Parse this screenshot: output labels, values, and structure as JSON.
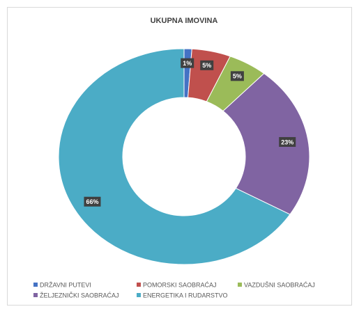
{
  "chart_data": {
    "type": "donut",
    "title": "UKUPNA IMOVINA",
    "categories": [
      "DRŽAVNI PUTEVI",
      "POMORSKI SAOBRAĆAJ",
      "VAZDUŠNI SAOBRAĆAJ",
      "ŽELJEZNIČKI SAOBRAĆAJ",
      "ENERGETIKA I RUDARSTVO"
    ],
    "values": [
      1,
      5,
      5,
      23,
      66
    ],
    "value_labels": [
      "1%",
      "5%",
      "5%",
      "23%",
      "66%"
    ],
    "colors": [
      "#4472c4",
      "#c0504d",
      "#9bbb59",
      "#8064a2",
      "#4bacc6"
    ],
    "legend": "bottom"
  }
}
